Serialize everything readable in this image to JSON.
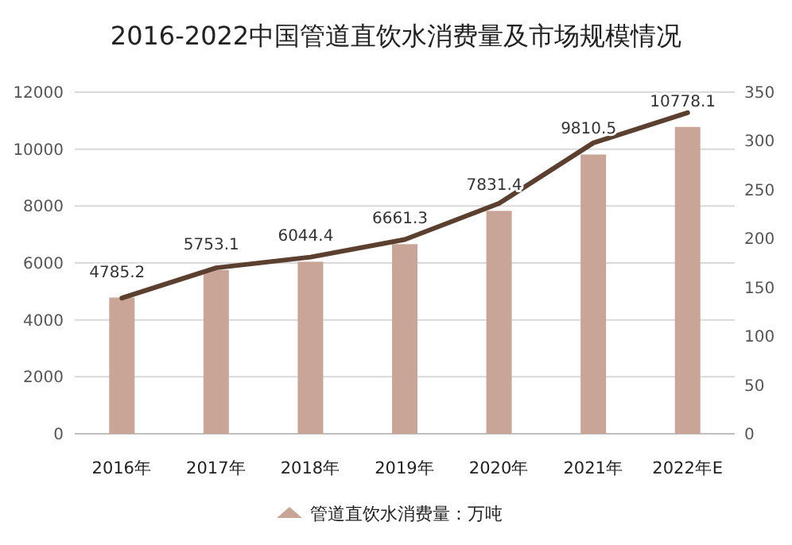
{
  "chart_data": {
    "type": "bar",
    "title": "2016-2022中国管道直饮水消费量及市场规模情况",
    "categories": [
      "2016年",
      "2017年",
      "2018年",
      "2019年",
      "2020年",
      "2021年",
      "2022年E"
    ],
    "series": [
      {
        "name": "管道直饮水消费量：万吨",
        "color": "#c8a597",
        "values": [
          4785.2,
          5753.1,
          6044.4,
          6661.3,
          7831.4,
          9810.5,
          10778.1
        ],
        "value_labels": [
          "4785.2",
          "5753.1",
          "6044.4",
          "6661.3",
          "7831.4",
          "9810.5",
          "10778.1"
        ]
      },
      {
        "type": "line",
        "axis": "y2",
        "color": "#5b3f2f",
        "values": [
          139,
          170,
          181,
          199,
          236,
          298,
          329
        ]
      }
    ],
    "ylim": [
      0,
      12000
    ],
    "yticks": [
      0,
      2000,
      4000,
      6000,
      8000,
      10000,
      12000
    ],
    "y2lim": [
      0,
      350
    ],
    "y2ticks": [
      0,
      50,
      100,
      150,
      200,
      250,
      300,
      350
    ],
    "grid": "y",
    "legend": "bottom"
  }
}
